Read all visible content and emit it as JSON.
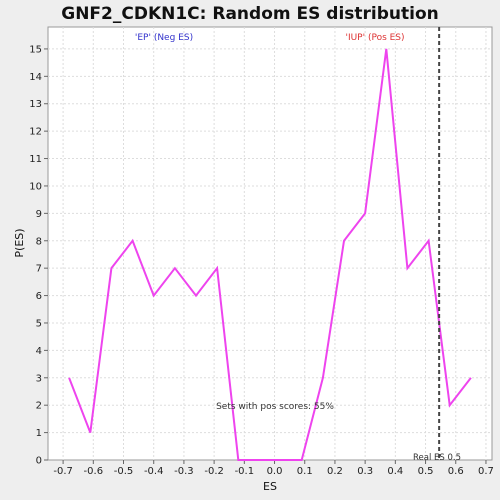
{
  "chart_data": {
    "type": "line",
    "title": "GNF2_CDKN1C: Random ES distribution",
    "xlabel": "ES",
    "ylabel": "P(ES)",
    "xlim": [
      -0.75,
      0.72
    ],
    "ylim": [
      0,
      15.8
    ],
    "x_ticks": [
      -0.7,
      -0.6,
      -0.5,
      -0.4,
      -0.3,
      -0.2,
      -0.1,
      0.0,
      0.1,
      0.2,
      0.3,
      0.4,
      0.5,
      0.6,
      0.7
    ],
    "x_tick_labels": [
      "-0.7",
      "-0.6",
      "-0.5",
      "-0.4",
      "-0.3",
      "-0.2",
      "-0.1",
      "0.0",
      "0.1",
      "0.2",
      "0.3",
      "0.4",
      "0.5",
      "0.6",
      "0.7"
    ],
    "y_ticks": [
      0,
      1,
      2,
      3,
      4,
      5,
      6,
      7,
      8,
      9,
      10,
      11,
      12,
      13,
      14,
      15
    ],
    "y_tick_labels": [
      "0",
      "1",
      "2",
      "3",
      "4",
      "5",
      "6",
      "7",
      "8",
      "9",
      "10",
      "11",
      "12",
      "13",
      "14",
      "15"
    ],
    "grid": true,
    "line_color": "#ee44ee",
    "series": [
      {
        "x": [
          -0.68,
          -0.61,
          -0.54,
          -0.47,
          -0.4,
          -0.33,
          -0.26,
          -0.19,
          -0.12,
          -0.05,
          0.02,
          0.09,
          0.16,
          0.23,
          0.3,
          0.37,
          0.44,
          0.51,
          0.58,
          0.65
        ],
        "y": [
          3,
          1,
          7,
          8,
          6,
          7,
          6,
          7,
          0,
          0,
          0,
          0,
          3,
          8,
          9,
          15,
          7,
          8,
          2,
          3
        ]
      }
    ],
    "real_es": 0.545,
    "real_es_color": "#444444",
    "annotations": {
      "neg_label": "'EP' (Neg ES)",
      "neg_color": "#3333cc",
      "pos_label": "'IUP' (Pos ES)",
      "pos_color": "#dd3333",
      "pos_scores": "Sets with pos scores: 55%",
      "real_es_label": "Real ES 0.5"
    }
  }
}
